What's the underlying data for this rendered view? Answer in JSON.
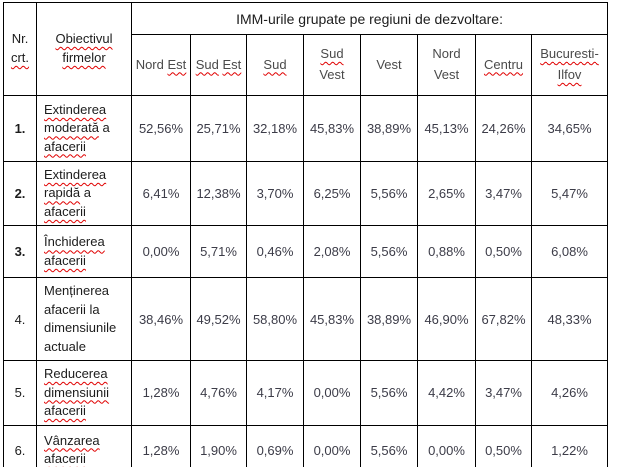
{
  "colors": {
    "border": "#000000",
    "squiggle_red": "#e00000",
    "header_text": "#1c1c1c",
    "region_text": "#4a4a4a",
    "value_text": "#3c3c48",
    "background": "#ffffff"
  },
  "table": {
    "group_header": "IMM-urile grupate pe regiuni de dezvoltare:",
    "corner": {
      "words": [
        {
          "t": "Nr.",
          "sq": false
        },
        {
          "t": "crt.",
          "sq": true
        }
      ]
    },
    "objective_header": {
      "words": [
        {
          "t": "Obiectivul",
          "sq": true
        },
        {
          "t": "firmelor",
          "sq": true
        }
      ]
    },
    "regions": [
      {
        "name": "Nord Est",
        "words": [
          {
            "t": "Nord",
            "sq": false
          },
          {
            "t": "Est",
            "sq": true
          }
        ]
      },
      {
        "name": "Sud Est",
        "words": [
          {
            "t": "Sud",
            "sq": true
          },
          {
            "t": "Est",
            "sq": true
          }
        ]
      },
      {
        "name": "Sud",
        "words": [
          {
            "t": "Sud",
            "sq": true
          }
        ]
      },
      {
        "name": "Sud Vest",
        "words": [
          {
            "t": "Sud",
            "sq": true
          },
          {
            "t": "Vest",
            "sq": false
          }
        ]
      },
      {
        "name": "Vest",
        "words": [
          {
            "t": "Vest",
            "sq": false
          }
        ]
      },
      {
        "name": "Nord Vest",
        "words": [
          {
            "t": "Nord",
            "sq": false
          },
          {
            "t": "Vest",
            "sq": false
          }
        ]
      },
      {
        "name": "Centru",
        "words": [
          {
            "t": "Centru",
            "sq": true
          }
        ]
      },
      {
        "name": "Bucuresti-Ilfov",
        "words": [
          {
            "t": "Bucuresti-",
            "sq": true
          },
          {
            "t": "Ilfov",
            "sq": true
          }
        ]
      }
    ],
    "rows": [
      {
        "num": "1.",
        "num_bold": true,
        "label": "Extinderea moderată a afacerii",
        "words": [
          {
            "t": "Extinderea",
            "sq": true
          },
          {
            "t": "moderată",
            "sq": true
          },
          {
            "t": "a",
            "sq": false
          },
          {
            "t": "afacerii",
            "sq": true
          }
        ],
        "values": [
          "52,56%",
          "25,71%",
          "32,18%",
          "45,83%",
          "38,89%",
          "45,13%",
          "24,26%",
          "34,65%"
        ]
      },
      {
        "num": "2.",
        "num_bold": true,
        "label": "Extinderea rapidă a afacerii",
        "words": [
          {
            "t": "Extinderea",
            "sq": true
          },
          {
            "t": "rapidă",
            "sq": true
          },
          {
            "t": "a",
            "sq": false
          },
          {
            "t": "afacerii",
            "sq": true
          }
        ],
        "values": [
          "6,41%",
          "12,38%",
          "3,70%",
          "6,25%",
          "5,56%",
          "2,65%",
          "3,47%",
          "5,47%"
        ]
      },
      {
        "num": "3.",
        "num_bold": true,
        "label": "Închiderea afacerii",
        "words": [
          {
            "t": "Închiderea",
            "sq": true
          },
          {
            "t": "afacerii",
            "sq": true
          }
        ],
        "values": [
          "0,00%",
          "5,71%",
          "0,46%",
          "2,08%",
          "5,56%",
          "0,88%",
          "0,50%",
          "6,08%"
        ]
      },
      {
        "num": "4.",
        "num_bold": false,
        "label": "Menținerea afacerii la dimensiunile actuale",
        "words": [
          {
            "t": "Menținerea",
            "sq": false
          },
          {
            "t": "afacerii",
            "sq": false
          },
          {
            "t": "la",
            "sq": false
          },
          {
            "t": "dimensiunile",
            "sq": false
          },
          {
            "t": "actuale",
            "sq": false
          }
        ],
        "values": [
          "38,46%",
          "49,52%",
          "58,80%",
          "45,83%",
          "38,89%",
          "46,90%",
          "67,82%",
          "48,33%"
        ]
      },
      {
        "num": "5.",
        "num_bold": false,
        "label": "Reducerea dimensiunii afacerii",
        "words": [
          {
            "t": "Reducerea",
            "sq": true
          },
          {
            "t": "dimensiunii",
            "sq": true
          },
          {
            "t": "afacerii",
            "sq": true
          }
        ],
        "values": [
          "1,28%",
          "4,76%",
          "4,17%",
          "0,00%",
          "5,56%",
          "4,42%",
          "3,47%",
          "4,26%"
        ]
      },
      {
        "num": "6.",
        "num_bold": false,
        "label": "Vânzarea afacerii",
        "words": [
          {
            "t": "Vânzarea",
            "sq": true
          },
          {
            "t": "afacerii",
            "sq": true
          }
        ],
        "values": [
          "1,28%",
          "1,90%",
          "0,69%",
          "0,00%",
          "5,56%",
          "0,00%",
          "0,50%",
          "1,22%"
        ]
      }
    ]
  }
}
